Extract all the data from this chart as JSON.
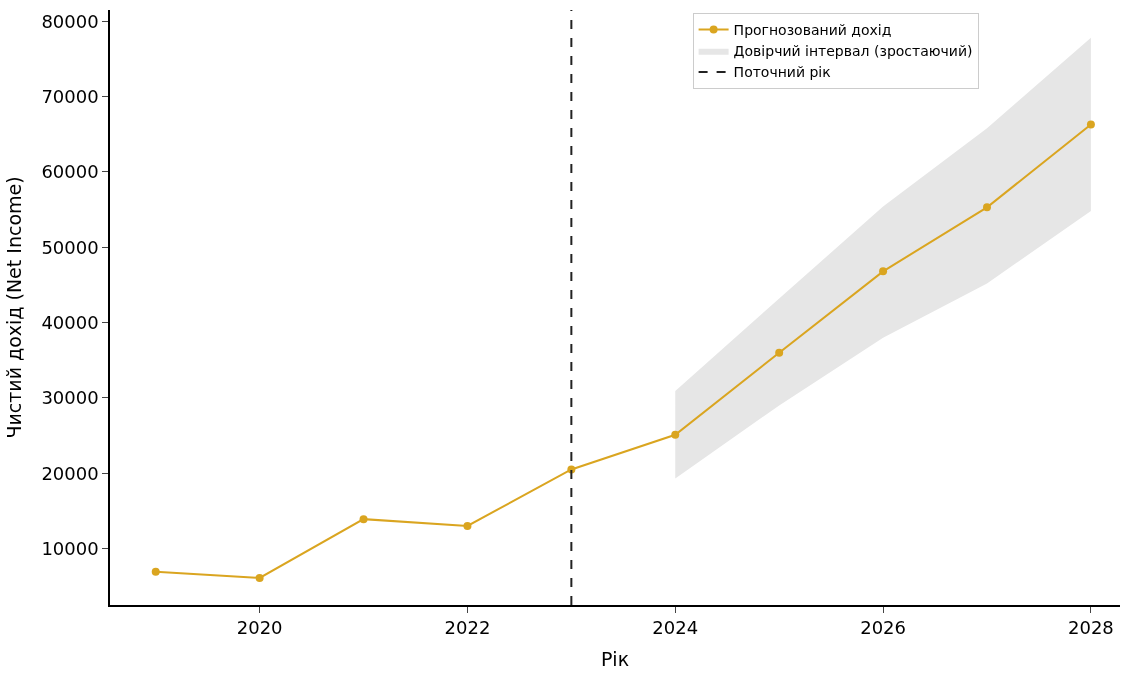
{
  "chart_data": {
    "type": "line",
    "xlabel": "Рік",
    "ylabel": "Чистий дохід (Net Income)",
    "x": [
      2019,
      2020,
      2021,
      2022,
      2023,
      2024,
      2025,
      2026,
      2027,
      2028
    ],
    "series": [
      {
        "name": "Прогнозований дохід",
        "color": "#daa520",
        "values": [
          6900,
          6100,
          13900,
          13000,
          20500,
          25100,
          36000,
          46800,
          55300,
          66300
        ]
      },
      {
        "name": "Довірчий інтервал (зростаючий)",
        "type": "area",
        "color": "#e6e6e6",
        "x": [
          2024,
          2025,
          2026,
          2027,
          2028
        ],
        "values": [
          null,
          null,
          null,
          null,
          null
        ],
        "lower": [
          19300,
          29000,
          38000,
          45200,
          54800
        ],
        "upper": [
          30900,
          43200,
          55400,
          65800,
          77800
        ]
      }
    ],
    "ref_lines": [
      {
        "axis": "x",
        "value": 2023,
        "label": "Поточний рік",
        "color": "#222222",
        "line_style": "dashed"
      }
    ],
    "xlim": [
      2018.56,
      2028.28
    ],
    "xticks": [
      2020,
      2022,
      2024,
      2026,
      2028
    ],
    "ylim": [
      2500,
      81500
    ],
    "yticks": [
      10000,
      20000,
      30000,
      40000,
      50000,
      60000,
      70000,
      80000
    ],
    "legend": "top right",
    "marker": "circle",
    "line_style": "solid"
  }
}
